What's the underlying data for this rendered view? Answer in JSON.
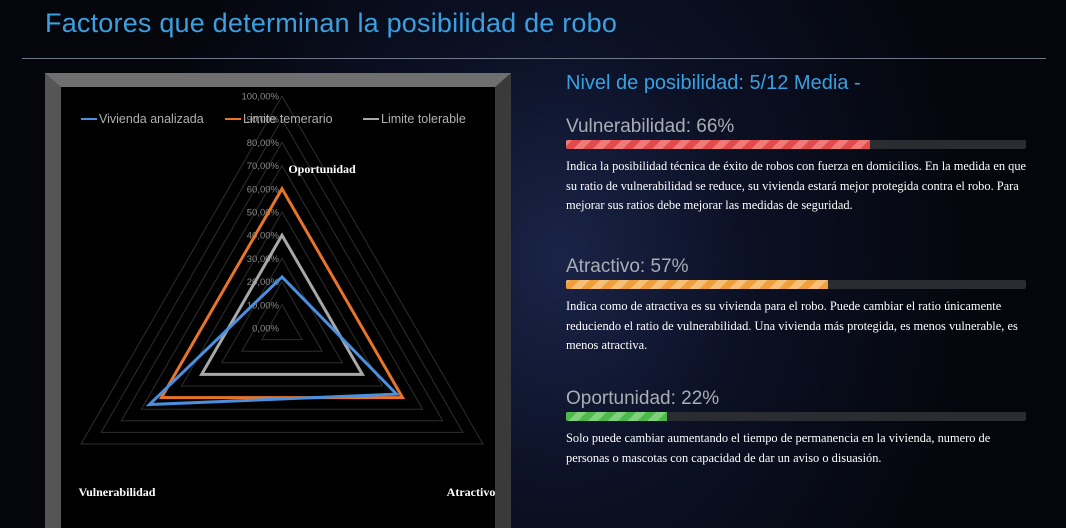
{
  "page": {
    "title": "Factores que determinan la posibilidad de robo"
  },
  "level": {
    "heading": "Nivel de posibilidad: 5/12 Media -"
  },
  "factors": [
    {
      "title": "Vulnerabilidad: 66%",
      "percent": 66,
      "color": "#e24b4b",
      "description": "Indica la posibilidad técnica de éxito de robos con fuerza en domicilios. En la medida en que su ratio de vulnerabilidad se reduce, su vivienda estará mejor protegida contra el robo. Para mejorar sus ratios debe mejorar las medidas de seguridad."
    },
    {
      "title": "Atractivo: 57%",
      "percent": 57,
      "color": "#ef9f3b",
      "description": "Indica como de atractiva es su vivienda para el robo. Puede cambiar el ratio únicamente reduciendo el ratio de vulnerabilidad. Una vivienda más protegida, es menos vulnerable, es menos atractiva."
    },
    {
      "title": "Oportunidad: 22%",
      "percent": 22,
      "color": "#4fb84a",
      "description": "Solo puede cambiar aumentando el tiempo de permanencia en la vivienda, numero de personas o mascotas con capacidad de dar un aviso o disuasión."
    }
  ],
  "chart_data": {
    "type": "radar",
    "axes": [
      "Oportunidad",
      "Atractivo",
      "Vulnerabilidad"
    ],
    "radial_ticks": [
      "0,00%",
      "10,00%",
      "20,00%",
      "30,00%",
      "40,00%",
      "50,00%",
      "60,00%",
      "70,00%",
      "80,00%",
      "90,00%",
      "100,00%"
    ],
    "rmax": 1.0,
    "legend_position": "top",
    "grid": true,
    "series": [
      {
        "name": "Vivienda analizada",
        "color": "#4a8fe0",
        "values": [
          0.22,
          0.57,
          0.66
        ]
      },
      {
        "name": "Limite temerario",
        "color": "#e8742a",
        "values": [
          0.6,
          0.6,
          0.6
        ]
      },
      {
        "name": "Limite tolerable",
        "color": "#a8a8a8",
        "values": [
          0.4,
          0.4,
          0.4
        ]
      }
    ]
  }
}
